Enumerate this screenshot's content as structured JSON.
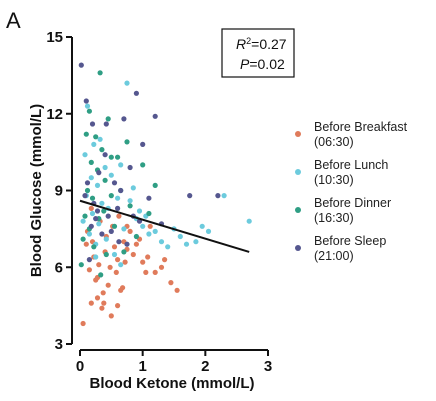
{
  "panel_label": "A",
  "chart_data": {
    "type": "scatter",
    "title": "",
    "xlabel": "Blood Ketone (mmol/L)",
    "ylabel": "Blood Glucose (mmol/L)",
    "xlim": [
      0,
      3
    ],
    "ylim": [
      3,
      15
    ],
    "x_ticks": [
      0,
      1,
      2,
      3
    ],
    "y_ticks": [
      3,
      6,
      9,
      12,
      15
    ],
    "legend_placement": "right",
    "grid": false,
    "annotation": {
      "r2_label": "R",
      "r2_sup": "2",
      "r2_value": "=0.27",
      "p_label": "P",
      "p_value": "=0.02"
    },
    "regression": {
      "x": [
        0,
        2.7
      ],
      "y": [
        8.6,
        6.6
      ],
      "color": "#111111"
    },
    "series": [
      {
        "name": "Before Breakfast",
        "name_line2": "(06:30)",
        "color": "#e07b5b",
        "points": [
          [
            0.05,
            3.8
          ],
          [
            0.1,
            6.9
          ],
          [
            0.12,
            7.4
          ],
          [
            0.15,
            5.9
          ],
          [
            0.18,
            8.3
          ],
          [
            0.2,
            7.0
          ],
          [
            0.22,
            6.4
          ],
          [
            0.25,
            5.5
          ],
          [
            0.28,
            4.8
          ],
          [
            0.3,
            6.1
          ],
          [
            0.32,
            7.8
          ],
          [
            0.35,
            4.4
          ],
          [
            0.37,
            5.0
          ],
          [
            0.4,
            6.6
          ],
          [
            0.42,
            7.2
          ],
          [
            0.45,
            5.3
          ],
          [
            0.48,
            6.0
          ],
          [
            0.5,
            4.1
          ],
          [
            0.52,
            7.6
          ],
          [
            0.55,
            6.8
          ],
          [
            0.58,
            5.8
          ],
          [
            0.6,
            6.3
          ],
          [
            0.62,
            8.0
          ],
          [
            0.65,
            5.1
          ],
          [
            0.68,
            5.2
          ],
          [
            0.7,
            7.0
          ],
          [
            0.72,
            6.2
          ],
          [
            0.75,
            6.7
          ],
          [
            0.8,
            7.4
          ],
          [
            0.85,
            6.5
          ],
          [
            0.9,
            6.9
          ],
          [
            0.95,
            7.1
          ],
          [
            1.0,
            6.2
          ],
          [
            1.05,
            5.8
          ],
          [
            1.08,
            6.4
          ],
          [
            1.12,
            7.6
          ],
          [
            1.2,
            5.8
          ],
          [
            1.3,
            6.0
          ],
          [
            1.35,
            6.3
          ],
          [
            1.45,
            5.4
          ],
          [
            1.55,
            5.1
          ],
          [
            0.18,
            4.6
          ],
          [
            0.28,
            5.6
          ],
          [
            0.38,
            4.6
          ],
          [
            0.6,
            4.5
          ],
          [
            0.75,
            7.6
          ]
        ]
      },
      {
        "name": "Before Lunch",
        "name_line2": "(10:30)",
        "color": "#6ccbdd",
        "points": [
          [
            0.05,
            7.8
          ],
          [
            0.08,
            10.4
          ],
          [
            0.1,
            8.8
          ],
          [
            0.12,
            12.3
          ],
          [
            0.15,
            7.3
          ],
          [
            0.18,
            9.5
          ],
          [
            0.2,
            8.1
          ],
          [
            0.22,
            10.8
          ],
          [
            0.25,
            6.9
          ],
          [
            0.28,
            9.2
          ],
          [
            0.3,
            7.7
          ],
          [
            0.32,
            11.0
          ],
          [
            0.35,
            8.5
          ],
          [
            0.4,
            9.9
          ],
          [
            0.42,
            7.1
          ],
          [
            0.45,
            8.3
          ],
          [
            0.5,
            9.6
          ],
          [
            0.55,
            6.5
          ],
          [
            0.6,
            8.7
          ],
          [
            0.65,
            10.0
          ],
          [
            0.7,
            7.5
          ],
          [
            0.75,
            13.2
          ],
          [
            0.8,
            8.6
          ],
          [
            0.85,
            9.1
          ],
          [
            0.9,
            7.9
          ],
          [
            0.95,
            8.2
          ],
          [
            1.0,
            7.6
          ],
          [
            1.05,
            8.0
          ],
          [
            1.1,
            7.3
          ],
          [
            1.2,
            7.4
          ],
          [
            1.3,
            7.0
          ],
          [
            1.4,
            6.8
          ],
          [
            1.5,
            7.5
          ],
          [
            1.6,
            7.2
          ],
          [
            1.7,
            6.9
          ],
          [
            1.85,
            7.0
          ],
          [
            1.95,
            7.6
          ],
          [
            2.05,
            7.4
          ],
          [
            2.3,
            8.8
          ],
          [
            2.7,
            7.8
          ],
          [
            0.25,
            6.4
          ],
          [
            0.65,
            6.1
          ]
        ]
      },
      {
        "name": "Before Dinner",
        "name_line2": "(16:30)",
        "color": "#2f9e84",
        "points": [
          [
            0.02,
            6.1
          ],
          [
            0.05,
            7.1
          ],
          [
            0.08,
            8.0
          ],
          [
            0.1,
            11.2
          ],
          [
            0.12,
            9.0
          ],
          [
            0.15,
            7.5
          ],
          [
            0.18,
            10.1
          ],
          [
            0.2,
            8.7
          ],
          [
            0.22,
            6.8
          ],
          [
            0.25,
            11.1
          ],
          [
            0.28,
            9.8
          ],
          [
            0.3,
            7.9
          ],
          [
            0.32,
            13.6
          ],
          [
            0.35,
            10.6
          ],
          [
            0.38,
            8.2
          ],
          [
            0.4,
            9.4
          ],
          [
            0.42,
            6.5
          ],
          [
            0.45,
            11.8
          ],
          [
            0.5,
            8.8
          ],
          [
            0.55,
            7.6
          ],
          [
            0.6,
            10.3
          ],
          [
            0.65,
            9.0
          ],
          [
            0.7,
            6.6
          ],
          [
            0.75,
            10.9
          ],
          [
            0.8,
            8.4
          ],
          [
            0.9,
            7.2
          ],
          [
            1.0,
            10.0
          ],
          [
            1.1,
            8.1
          ],
          [
            1.2,
            9.2
          ],
          [
            0.15,
            12.1
          ],
          [
            0.33,
            5.7
          ],
          [
            0.5,
            10.3
          ]
        ]
      },
      {
        "name": "Before Sleep",
        "name_line2": "(21:00)",
        "color": "#55578f",
        "points": [
          [
            0.02,
            13.9
          ],
          [
            0.08,
            8.8
          ],
          [
            0.1,
            12.5
          ],
          [
            0.12,
            9.3
          ],
          [
            0.15,
            6.3
          ],
          [
            0.18,
            7.6
          ],
          [
            0.2,
            11.6
          ],
          [
            0.22,
            8.5
          ],
          [
            0.25,
            7.9
          ],
          [
            0.28,
            8.2
          ],
          [
            0.3,
            9.7
          ],
          [
            0.35,
            7.3
          ],
          [
            0.4,
            10.4
          ],
          [
            0.45,
            8.0
          ],
          [
            0.5,
            7.4
          ],
          [
            0.55,
            9.3
          ],
          [
            0.6,
            8.3
          ],
          [
            0.62,
            7.0
          ],
          [
            0.65,
            9.0
          ],
          [
            0.7,
            11.8
          ],
          [
            0.75,
            6.9
          ],
          [
            0.8,
            9.9
          ],
          [
            0.85,
            8.0
          ],
          [
            0.9,
            12.8
          ],
          [
            0.95,
            7.8
          ],
          [
            1.0,
            10.8
          ],
          [
            1.1,
            8.7
          ],
          [
            1.2,
            11.9
          ],
          [
            1.3,
            7.7
          ],
          [
            1.75,
            8.8
          ],
          [
            2.2,
            8.8
          ],
          [
            0.42,
            11.6
          ]
        ]
      }
    ]
  }
}
